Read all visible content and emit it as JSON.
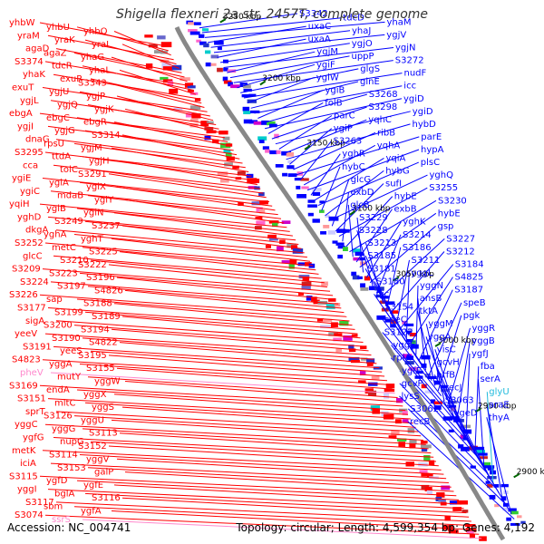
{
  "title": "Shigella flexneri 2a str. 2457T, complete genome",
  "accession": "Accession: NC_004741",
  "topology": "Topology: circular; Length: 4,599,354 bp; Genes: 4,192",
  "colors": {
    "left_strand": "#ff0000",
    "right_strand": "#0000ff",
    "backbone": "#888888",
    "pink_label": "#ff88cc",
    "cyan_label": "#22bbdd"
  },
  "kbp_ticks": [
    "3250 kbp",
    "3200 kbp",
    "3150 kbp",
    "3100 kbp",
    "3050 kbp",
    "3000 kbp",
    "2950 kbp",
    "2900 kbp"
  ],
  "left_labels": [
    {
      "text": "yhbW",
      "c": "red"
    },
    {
      "text": "yhbU",
      "c": "red"
    },
    {
      "text": "yhbQ",
      "c": "red"
    },
    {
      "text": "yraM",
      "c": "red"
    },
    {
      "text": "yraK",
      "c": "red"
    },
    {
      "text": "yraI",
      "c": "red"
    },
    {
      "text": "agaD",
      "c": "red"
    },
    {
      "text": "agaZ",
      "c": "red"
    },
    {
      "text": "yhaG",
      "c": "red"
    },
    {
      "text": "S3374",
      "c": "red"
    },
    {
      "text": "tdcR",
      "c": "red"
    },
    {
      "text": "yhaL",
      "c": "red"
    },
    {
      "text": "yhaK",
      "c": "red"
    },
    {
      "text": "exuR",
      "c": "red"
    },
    {
      "text": "S3343",
      "c": "red"
    },
    {
      "text": "exuT",
      "c": "red"
    },
    {
      "text": "ygjU",
      "c": "red"
    },
    {
      "text": "ygjP",
      "c": "red"
    },
    {
      "text": "ygjL",
      "c": "red"
    },
    {
      "text": "ygjQ",
      "c": "red"
    },
    {
      "text": "ygjK",
      "c": "red"
    },
    {
      "text": "ebgA",
      "c": "red"
    },
    {
      "text": "ebgC",
      "c": "red"
    },
    {
      "text": "ebgR",
      "c": "red"
    },
    {
      "text": "ygjI",
      "c": "red"
    },
    {
      "text": "ygjG",
      "c": "red"
    },
    {
      "text": "S3314",
      "c": "red"
    },
    {
      "text": "dnaG",
      "c": "red"
    },
    {
      "text": "rpsU",
      "c": "red"
    },
    {
      "text": "ygjM",
      "c": "red"
    },
    {
      "text": "S3295",
      "c": "red"
    },
    {
      "text": "ttdA",
      "c": "red"
    },
    {
      "text": "ygjH",
      "c": "red"
    },
    {
      "text": "cca",
      "c": "red"
    },
    {
      "text": "tolC",
      "c": "red"
    },
    {
      "text": "S3291",
      "c": "red"
    },
    {
      "text": "ygiE",
      "c": "red"
    },
    {
      "text": "ygiA",
      "c": "red"
    },
    {
      "text": "ygiX",
      "c": "red"
    },
    {
      "text": "ygiC",
      "c": "red"
    },
    {
      "text": "mdaB",
      "c": "red"
    },
    {
      "text": "ygiY",
      "c": "red"
    },
    {
      "text": "yqiH",
      "c": "red"
    },
    {
      "text": "ygiB",
      "c": "red"
    },
    {
      "text": "ygiN",
      "c": "red"
    },
    {
      "text": "yghD",
      "c": "red"
    },
    {
      "text": "S3249",
      "c": "red"
    },
    {
      "text": "S3237",
      "c": "red"
    },
    {
      "text": "dkgA",
      "c": "red"
    },
    {
      "text": "yghA",
      "c": "red"
    },
    {
      "text": "yghT",
      "c": "red"
    },
    {
      "text": "S3252",
      "c": "red"
    },
    {
      "text": "metC",
      "c": "red"
    },
    {
      "text": "S3225",
      "c": "red"
    },
    {
      "text": "glcC",
      "c": "red"
    },
    {
      "text": "S3210",
      "c": "red"
    },
    {
      "text": "S3222",
      "c": "red"
    },
    {
      "text": "S3209",
      "c": "red"
    },
    {
      "text": "S3223",
      "c": "red"
    },
    {
      "text": "S3196",
      "c": "red"
    },
    {
      "text": "S3224",
      "c": "red"
    },
    {
      "text": "S3197",
      "c": "red"
    },
    {
      "text": "S4826",
      "c": "red"
    },
    {
      "text": "S3226",
      "c": "red"
    },
    {
      "text": "sap",
      "c": "red"
    },
    {
      "text": "S3188",
      "c": "red"
    },
    {
      "text": "S3177",
      "c": "red"
    },
    {
      "text": "S3199",
      "c": "red"
    },
    {
      "text": "S3189",
      "c": "red"
    },
    {
      "text": "sigA",
      "c": "red"
    },
    {
      "text": "S3200",
      "c": "red"
    },
    {
      "text": "S3194",
      "c": "red"
    },
    {
      "text": "yeeV",
      "c": "red"
    },
    {
      "text": "S3190",
      "c": "red"
    },
    {
      "text": "S4822",
      "c": "red"
    },
    {
      "text": "S3191",
      "c": "red"
    },
    {
      "text": "yeeS",
      "c": "red"
    },
    {
      "text": "S3195",
      "c": "red"
    },
    {
      "text": "S4823",
      "c": "red"
    },
    {
      "text": "yggA",
      "c": "red"
    },
    {
      "text": "S3155",
      "c": "red"
    },
    {
      "text": "pheV",
      "c": "pink"
    },
    {
      "text": "mutY",
      "c": "red"
    },
    {
      "text": "yggW",
      "c": "red"
    },
    {
      "text": "S3169",
      "c": "red"
    },
    {
      "text": "endA",
      "c": "red"
    },
    {
      "text": "yggX",
      "c": "red"
    },
    {
      "text": "S3151",
      "c": "red"
    },
    {
      "text": "mltC",
      "c": "red"
    },
    {
      "text": "yggS",
      "c": "red"
    },
    {
      "text": "sprT",
      "c": "red"
    },
    {
      "text": "S3126",
      "c": "red"
    },
    {
      "text": "yggU",
      "c": "red"
    },
    {
      "text": "yggC",
      "c": "red"
    },
    {
      "text": "yggG",
      "c": "red"
    },
    {
      "text": "S3113",
      "c": "red"
    },
    {
      "text": "ygfG",
      "c": "red"
    },
    {
      "text": "nupG",
      "c": "red"
    },
    {
      "text": "S3152",
      "c": "red"
    },
    {
      "text": "metK",
      "c": "red"
    },
    {
      "text": "S3114",
      "c": "red"
    },
    {
      "text": "yggV",
      "c": "red"
    },
    {
      "text": "iciA",
      "c": "red"
    },
    {
      "text": "S3153",
      "c": "red"
    },
    {
      "text": "galP",
      "c": "red"
    },
    {
      "text": "S3115",
      "c": "red"
    },
    {
      "text": "ygfD",
      "c": "red"
    },
    {
      "text": "ygfE",
      "c": "red"
    },
    {
      "text": "yggI",
      "c": "red"
    },
    {
      "text": "bglA",
      "c": "red"
    },
    {
      "text": "S3116",
      "c": "red"
    },
    {
      "text": "S3117",
      "c": "red"
    },
    {
      "text": "sbm",
      "c": "red"
    },
    {
      "text": "ygfA",
      "c": "red"
    },
    {
      "text": "S3074",
      "c": "red"
    },
    {
      "text": "ssrS",
      "c": "pink"
    }
  ],
  "right_labels": [
    {
      "text": "S3342",
      "c": "blue"
    },
    {
      "text": "tdcD",
      "c": "blue"
    },
    {
      "text": "yhaM",
      "c": "blue"
    },
    {
      "text": "uxaC",
      "c": "blue"
    },
    {
      "text": "yhaJ",
      "c": "blue"
    },
    {
      "text": "ygjV",
      "c": "blue"
    },
    {
      "text": "uxaA",
      "c": "blue"
    },
    {
      "text": "ygjO",
      "c": "blue"
    },
    {
      "text": "ygjN",
      "c": "blue"
    },
    {
      "text": "ygjM",
      "c": "blue"
    },
    {
      "text": "uppP",
      "c": "blue"
    },
    {
      "text": "S3272",
      "c": "blue"
    },
    {
      "text": "ygiF",
      "c": "blue"
    },
    {
      "text": "glgS",
      "c": "blue"
    },
    {
      "text": "nudF",
      "c": "blue"
    },
    {
      "text": "ygiW",
      "c": "blue"
    },
    {
      "text": "glnE",
      "c": "blue"
    },
    {
      "text": "icc",
      "c": "blue"
    },
    {
      "text": "ygiB",
      "c": "blue"
    },
    {
      "text": "S3268",
      "c": "blue"
    },
    {
      "text": "ygiD",
      "c": "blue"
    },
    {
      "text": "folB",
      "c": "blue"
    },
    {
      "text": "S3298",
      "c": "blue"
    },
    {
      "text": "ygiD",
      "c": "blue"
    },
    {
      "text": "parC",
      "c": "blue"
    },
    {
      "text": "yqhC",
      "c": "blue"
    },
    {
      "text": "hybD",
      "c": "blue"
    },
    {
      "text": "ygiP",
      "c": "blue"
    },
    {
      "text": "ribB",
      "c": "blue"
    },
    {
      "text": "parE",
      "c": "blue"
    },
    {
      "text": "S3263",
      "c": "blue"
    },
    {
      "text": "yqhA",
      "c": "blue"
    },
    {
      "text": "hypA",
      "c": "blue"
    },
    {
      "text": "yghR",
      "c": "blue"
    },
    {
      "text": "yqiA",
      "c": "blue"
    },
    {
      "text": "plsC",
      "c": "blue"
    },
    {
      "text": "hybC",
      "c": "blue"
    },
    {
      "text": "hybG",
      "c": "blue"
    },
    {
      "text": "yghQ",
      "c": "blue"
    },
    {
      "text": "glcG",
      "c": "blue"
    },
    {
      "text": "sufI",
      "c": "blue"
    },
    {
      "text": "S3255",
      "c": "blue"
    },
    {
      "text": "exbD",
      "c": "blue"
    },
    {
      "text": "hybE",
      "c": "blue"
    },
    {
      "text": "S3230",
      "c": "blue"
    },
    {
      "text": "glcB",
      "c": "blue"
    },
    {
      "text": "exbB",
      "c": "blue"
    },
    {
      "text": "hybE",
      "c": "blue"
    },
    {
      "text": "S3229",
      "c": "blue"
    },
    {
      "text": "yghK",
      "c": "blue"
    },
    {
      "text": "gsp",
      "c": "blue"
    },
    {
      "text": "S3228",
      "c": "blue"
    },
    {
      "text": "S3214",
      "c": "blue"
    },
    {
      "text": "S3227",
      "c": "blue"
    },
    {
      "text": "S3213",
      "c": "blue"
    },
    {
      "text": "S3186",
      "c": "blue"
    },
    {
      "text": "S3212",
      "c": "blue"
    },
    {
      "text": "S3185",
      "c": "blue"
    },
    {
      "text": "S3211",
      "c": "blue"
    },
    {
      "text": "S3184",
      "c": "blue"
    },
    {
      "text": "S3181",
      "c": "blue"
    },
    {
      "text": "yggL",
      "c": "blue"
    },
    {
      "text": "S4825",
      "c": "blue"
    },
    {
      "text": "S3180",
      "c": "blue"
    },
    {
      "text": "yggN",
      "c": "blue"
    },
    {
      "text": "S3187",
      "c": "blue"
    },
    {
      "text": "pic",
      "c": "blue"
    },
    {
      "text": "ansB",
      "c": "blue"
    },
    {
      "text": "speB",
      "c": "blue"
    },
    {
      "text": "S3154",
      "c": "blue"
    },
    {
      "text": "tktA",
      "c": "blue"
    },
    {
      "text": "pgk",
      "c": "blue"
    },
    {
      "text": "speC",
      "c": "blue"
    },
    {
      "text": "yggM",
      "c": "blue"
    },
    {
      "text": "yggR",
      "c": "blue"
    },
    {
      "text": "S3122",
      "c": "blue"
    },
    {
      "text": "yggA",
      "c": "blue"
    },
    {
      "text": "yggB",
      "c": "blue"
    },
    {
      "text": "yggE",
      "c": "blue"
    },
    {
      "text": "visC",
      "c": "blue"
    },
    {
      "text": "ygfJ",
      "c": "blue"
    },
    {
      "text": "rpiA",
      "c": "blue"
    },
    {
      "text": "gcvH",
      "c": "blue"
    },
    {
      "text": "fba",
      "c": "blue"
    },
    {
      "text": "ygfF",
      "c": "blue"
    },
    {
      "text": "prfB",
      "c": "blue"
    },
    {
      "text": "serA",
      "c": "blue"
    },
    {
      "text": "gcvP",
      "c": "blue"
    },
    {
      "text": "recJ",
      "c": "blue"
    },
    {
      "text": "glyU",
      "c": "cyan"
    },
    {
      "text": "lysS",
      "c": "blue"
    },
    {
      "text": "S3063",
      "c": "blue"
    },
    {
      "text": "araE",
      "c": "blue"
    },
    {
      "text": "S3062",
      "c": "blue"
    },
    {
      "text": "ygeD",
      "c": "blue"
    },
    {
      "text": "thyA",
      "c": "blue"
    },
    {
      "text": "recB",
      "c": "blue"
    }
  ]
}
